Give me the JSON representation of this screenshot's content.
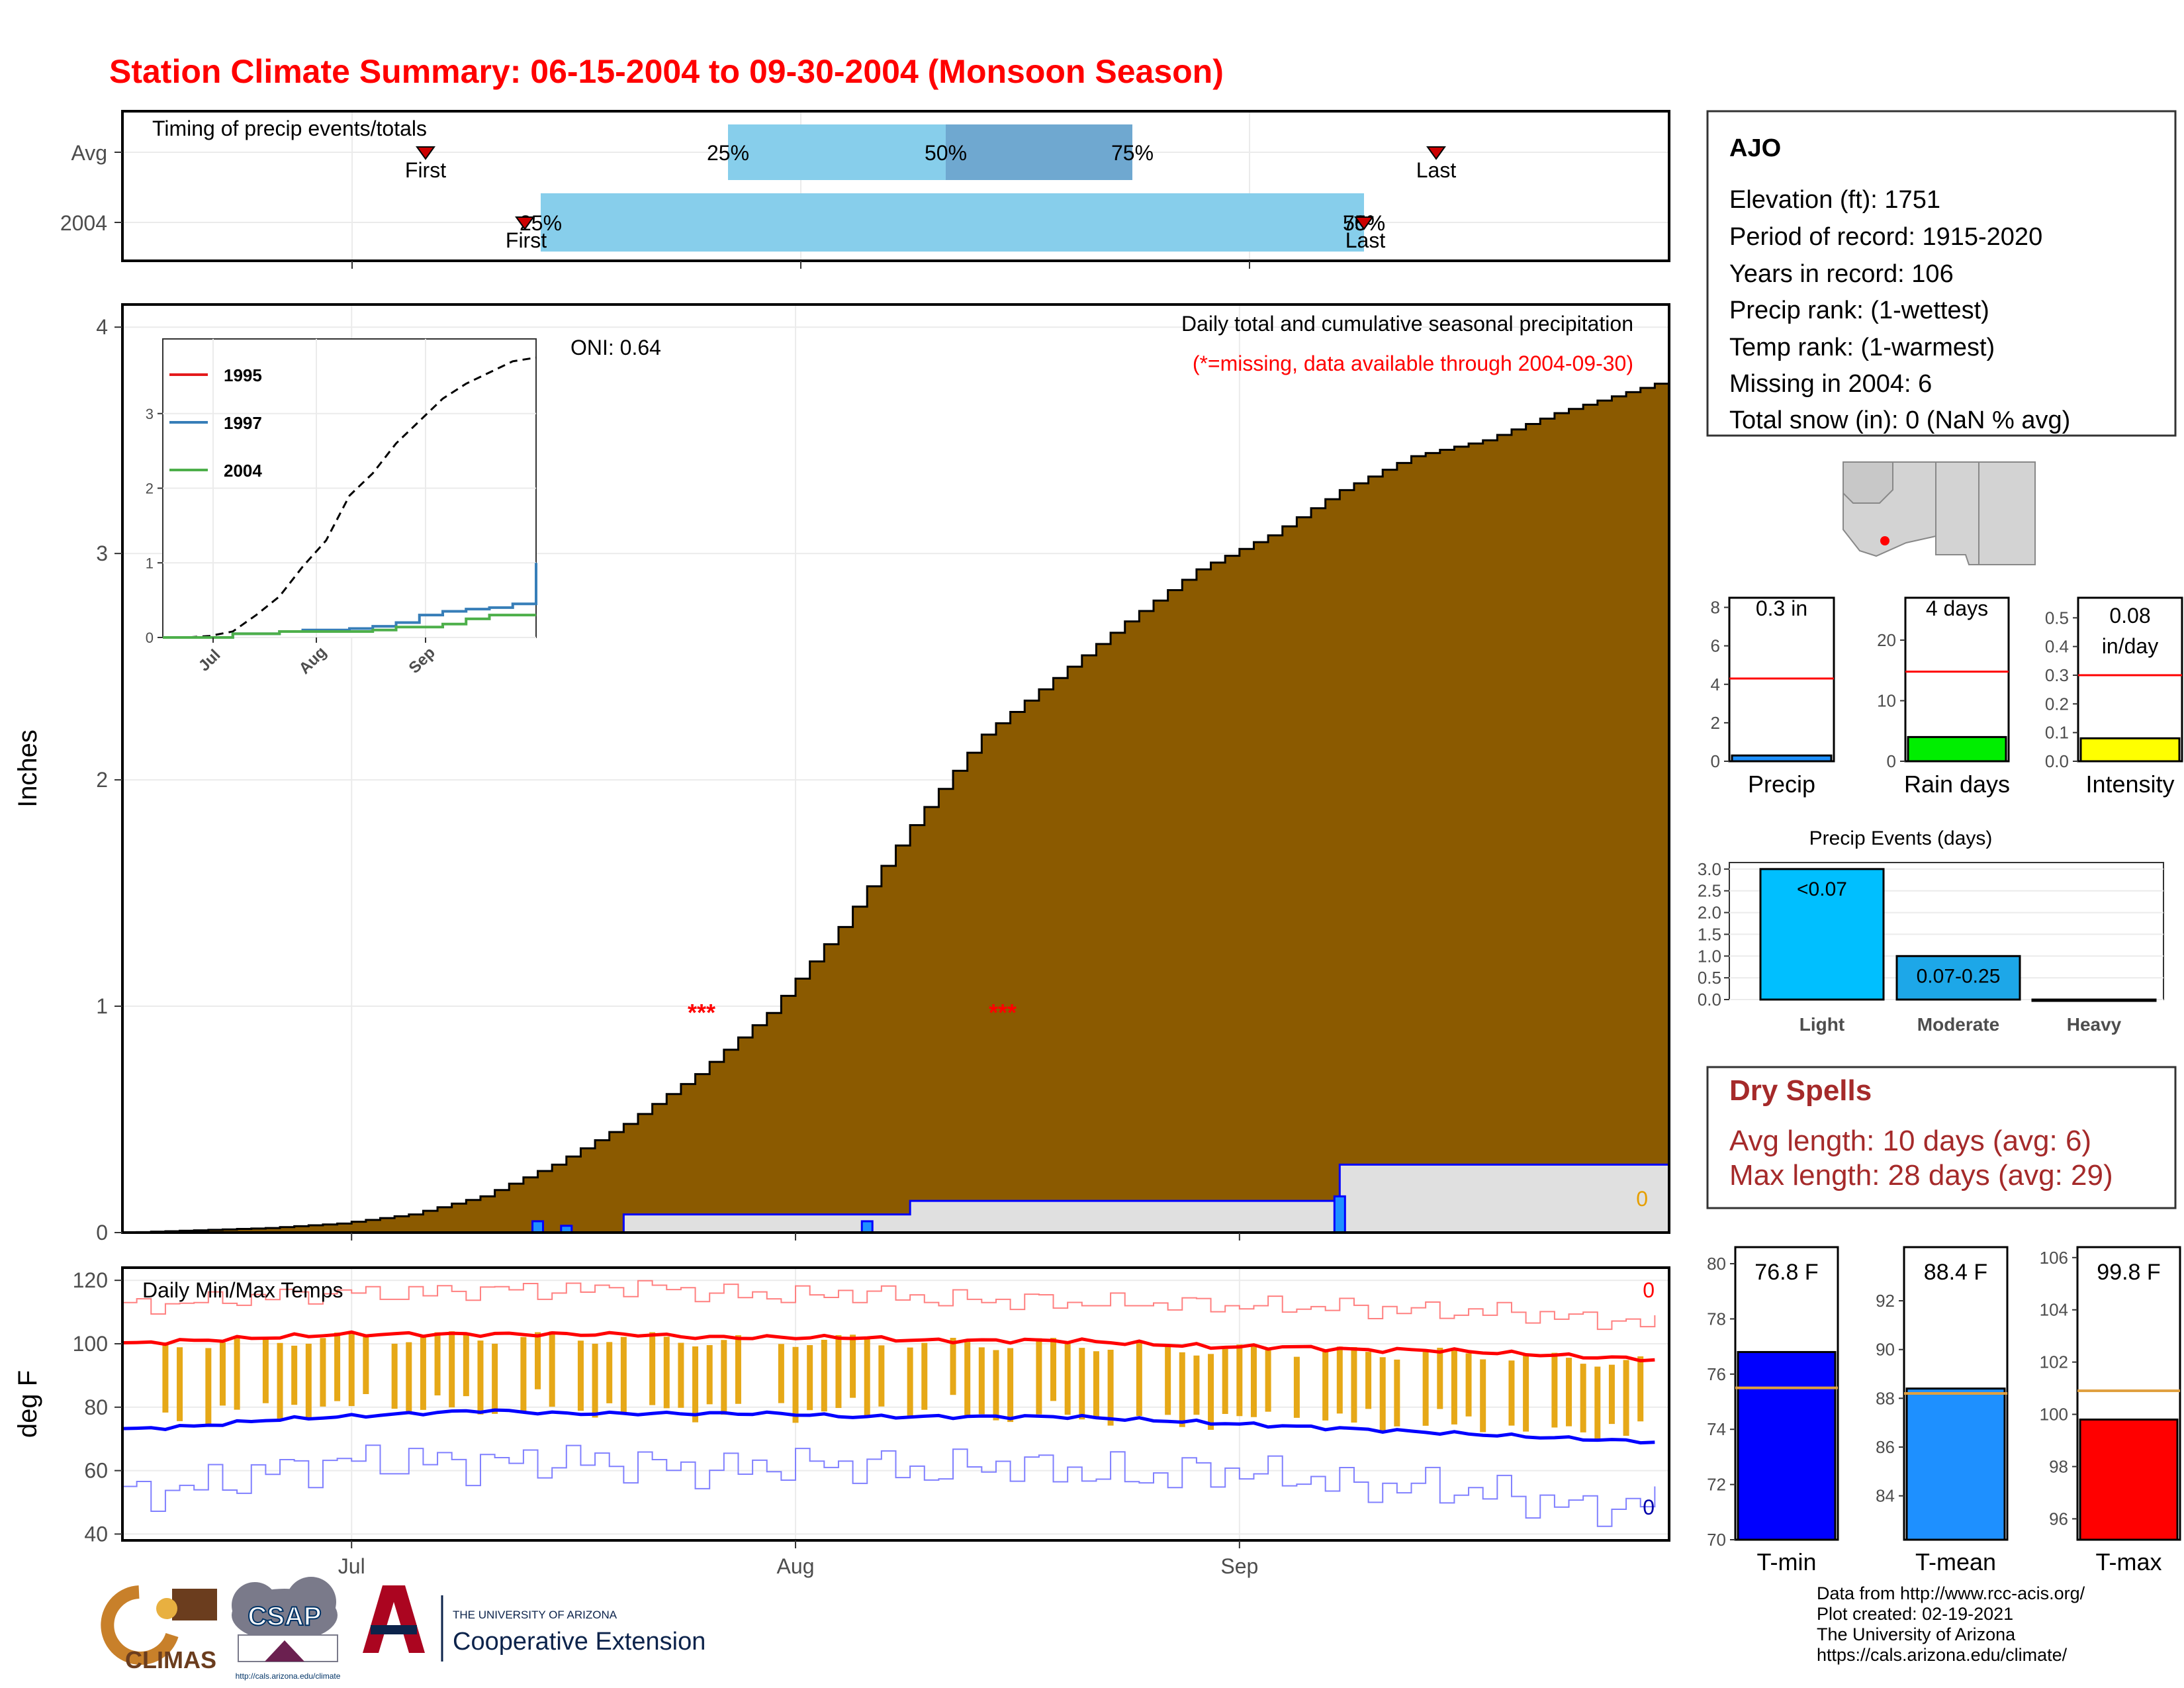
{
  "title": "Station Climate Summary: 06-15-2004 to 09-30-2004 (Monsoon Season)",
  "timing_panel": {
    "title": "Timing of precip events/totals",
    "rows": [
      "Avg",
      "2004"
    ],
    "avg": {
      "first": "First",
      "last": "Last",
      "p25": "25%",
      "p50": "50%",
      "p75": "75%"
    },
    "yr": {
      "first": "First",
      "last": "Last",
      "p25": "25%",
      "p50": "50%",
      "p75": "75%"
    }
  },
  "station": {
    "name": "AJO",
    "elevation": "Elevation (ft): 1751",
    "period": "Period of record: 1915-2020",
    "years": "Years in record: 106",
    "precip_rank": "Precip rank:  (1-wettest)",
    "temp_rank": "Temp rank:  (1-warmest)",
    "missing": "Missing in 2004: 6",
    "snow": "Total snow (in): 0 (NaN % avg)"
  },
  "colors": {
    "title": "#ff0000",
    "cumulative_fill": "#8b5a00",
    "current_line": "#0000ff",
    "dry_spells": "#a52a2a",
    "tmin": "#0000ff",
    "tmean": "#1e90ff",
    "tmax": "#ff0000",
    "avg_line": "#ff0000",
    "temp_avg_line": "#e0a040"
  },
  "chart_data": [
    {
      "type": "area",
      "name": "precip-main",
      "ylabel": "Inches",
      "ylim": [
        0,
        4.1
      ],
      "yticks": [
        0,
        1,
        2,
        3,
        4
      ],
      "xticks": [
        "Jul",
        "Aug",
        "Sep"
      ],
      "annotation_title": "Daily total and cumulative seasonal precipitation",
      "annotation_missing": "(*=missing, data available through 2004-09-30)",
      "oni": "ONI: 0.64",
      "missing_marks": [
        "***",
        "***"
      ],
      "end_label": "0",
      "x_dates": [
        "06-15",
        "06-20",
        "06-25",
        "06-30",
        "07-05",
        "07-10",
        "07-15",
        "07-20",
        "07-25",
        "07-30",
        "08-04",
        "08-09",
        "08-14",
        "08-19",
        "08-24",
        "08-29",
        "09-03",
        "09-08",
        "09-13",
        "09-18",
        "09-23",
        "09-30"
      ],
      "avg_cumulative": [
        0.0,
        0.01,
        0.02,
        0.04,
        0.08,
        0.16,
        0.3,
        0.48,
        0.7,
        0.97,
        1.35,
        1.8,
        2.2,
        2.45,
        2.7,
        2.93,
        3.08,
        3.28,
        3.43,
        3.5,
        3.62,
        3.75
      ],
      "current_cumulative": [
        0.0,
        0.0,
        0.0,
        0.0,
        0.0,
        0.0,
        0.0,
        0.08,
        0.08,
        0.08,
        0.08,
        0.14,
        0.14,
        0.14,
        0.14,
        0.14,
        0.14,
        0.3,
        0.3,
        0.3,
        0.3,
        0.3
      ],
      "daily_bars": [
        {
          "date": "07-14",
          "value": 0.05
        },
        {
          "date": "07-16",
          "value": 0.03
        },
        {
          "date": "08-06",
          "value": 0.05
        },
        {
          "date": "09-08",
          "value": 0.16
        }
      ]
    },
    {
      "type": "line",
      "name": "precip-inset",
      "series": [
        {
          "name": "1995",
          "color": "#e41a1c"
        },
        {
          "name": "1997",
          "color": "#377eb8"
        },
        {
          "name": "2004",
          "color": "#4daf4a"
        }
      ],
      "yticks": [
        0,
        1,
        2,
        3
      ],
      "xticks": [
        "Jul",
        "Aug",
        "Sep"
      ],
      "avg_curve": [
        0.0,
        0.0,
        0.02,
        0.08,
        0.3,
        0.55,
        0.95,
        1.3,
        1.9,
        2.2,
        2.6,
        2.9,
        3.2,
        3.4,
        3.55,
        3.7,
        3.75
      ],
      "s1997": [
        0.0,
        0.0,
        0.0,
        0.05,
        0.05,
        0.08,
        0.1,
        0.1,
        0.12,
        0.15,
        0.2,
        0.3,
        0.35,
        0.38,
        0.4,
        0.45,
        1.0
      ],
      "s2004": [
        0.0,
        0.0,
        0.0,
        0.05,
        0.05,
        0.08,
        0.08,
        0.08,
        0.08,
        0.1,
        0.14,
        0.14,
        0.18,
        0.25,
        0.3,
        0.3,
        0.3
      ]
    },
    {
      "type": "line",
      "name": "temps",
      "title": "Daily Min/Max Temps",
      "ylabel": "deg F",
      "ylim": [
        38,
        124
      ],
      "yticks": [
        40,
        60,
        80,
        100,
        120
      ],
      "xticks": [
        "Jul",
        "Aug",
        "Sep"
      ],
      "corner_labels": [
        "0",
        "0"
      ],
      "avg_max": [
        100,
        101,
        102,
        103,
        103,
        103,
        103,
        103,
        102,
        102,
        102,
        101,
        101,
        101,
        100,
        99,
        99,
        98,
        98,
        97,
        96,
        95
      ],
      "avg_min": [
        73,
        74,
        76,
        77,
        78,
        79,
        78,
        78,
        78,
        78,
        77,
        77,
        77,
        77,
        76,
        75,
        74,
        73,
        72,
        71,
        70,
        69
      ],
      "max_record": [
        112,
        113,
        115,
        116,
        116,
        117,
        117,
        118,
        116,
        115,
        116,
        114,
        114,
        113,
        113,
        112,
        112,
        111,
        110,
        110,
        108,
        106
      ],
      "min_record": [
        52,
        55,
        60,
        63,
        63,
        62,
        63,
        62,
        60,
        62,
        62,
        60,
        62,
        60,
        58,
        60,
        58,
        55,
        55,
        52,
        48,
        50
      ]
    },
    {
      "type": "bar",
      "name": "summary-bars",
      "panels": [
        {
          "label": "Precip",
          "value_label": "0.3 in",
          "value": 0.3,
          "avg": 4.3,
          "ylim": [
            0,
            8.5
          ],
          "yticks": [
            "0",
            "2",
            "4",
            "6",
            "8"
          ],
          "color": "#1e90ff"
        },
        {
          "label": "Rain days",
          "value_label": "4 days",
          "value": 4,
          "avg": 14.8,
          "ylim": [
            0,
            27
          ],
          "yticks": [
            "0",
            "10",
            "20"
          ],
          "color": "#00ee00"
        },
        {
          "label": "Intensity",
          "value_label": "0.08 in/day",
          "value": 0.08,
          "avg": 0.3,
          "ylim": [
            0,
            0.57
          ],
          "yticks": [
            "0.0",
            "0.1",
            "0.2",
            "0.3",
            "0.4",
            "0.5"
          ],
          "color": "#ffff00"
        }
      ]
    },
    {
      "type": "bar",
      "name": "precip-events",
      "title": "Precip Events (days)",
      "categories": [
        "Light",
        "Moderate",
        "Heavy"
      ],
      "values": [
        3,
        1,
        0
      ],
      "bar_labels": [
        "<0.07",
        "0.07-0.25",
        ""
      ],
      "ylim": [
        0,
        3.15
      ],
      "yticks": [
        "0.0",
        "0.5",
        "1.0",
        "1.5",
        "2.0",
        "2.5",
        "3.0"
      ]
    },
    {
      "type": "bar",
      "name": "temp-bars",
      "panels": [
        {
          "label": "T-min",
          "value_label": "76.8 F",
          "value": 76.8,
          "avg": 75.5,
          "ylim": [
            70,
            80.6
          ],
          "yticks": [
            "70",
            "72",
            "74",
            "76",
            "78",
            "80"
          ],
          "color": "#0000ff"
        },
        {
          "label": "T-mean",
          "value_label": "88.4 F",
          "value": 88.4,
          "avg": 88.2,
          "ylim": [
            82.2,
            94.2
          ],
          "yticks": [
            "84",
            "86",
            "88",
            "90",
            "92"
          ],
          "color": "#1e90ff"
        },
        {
          "label": "T-max",
          "value_label": "99.8 F",
          "value": 99.8,
          "avg": 100.9,
          "ylim": [
            95.2,
            106.4
          ],
          "yticks": [
            "96",
            "98",
            "100",
            "102",
            "104",
            "106"
          ],
          "color": "#ff0000"
        }
      ]
    }
  ],
  "dry_spells": {
    "title": "Dry Spells",
    "avg": "Avg length: 10 days (avg: 6)",
    "max": "Max length: 28 days (avg: 29)"
  },
  "logos": {
    "climas": "CLIMAS",
    "csap": "CSAP",
    "csap_url": "http://cals.arizona.edu/climate",
    "ua_small": "THE UNIVERSITY OF ARIZONA",
    "ua_big": "Cooperative Extension"
  },
  "credits": [
    "Data from http://www.rcc-acis.org/",
    "Plot created: 02-19-2021",
    "The University of Arizona",
    "https://cals.arizona.edu/climate/"
  ]
}
